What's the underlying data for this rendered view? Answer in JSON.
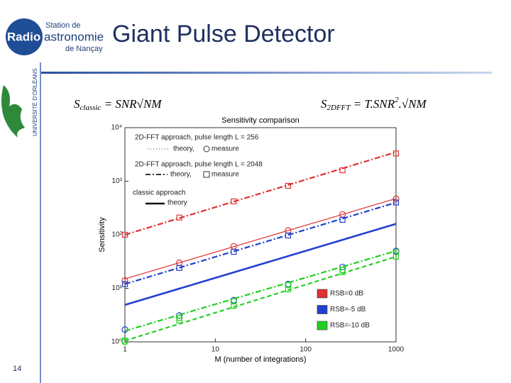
{
  "slide": {
    "logo": {
      "top": "Station de",
      "radio": "Radio",
      "astro": "astronomie",
      "bottom": "de Nançay"
    },
    "university": "UNIVERSITÉ D'ORLÉANS",
    "title": "Giant Pulse Detector",
    "page": "14",
    "formula1": {
      "lhs": "S",
      "sub": "classic",
      "rhs": " = SNR√NM"
    },
    "formula2": {
      "lhs": "S",
      "sub": "2DFFT",
      "rhs": " = T.SNR",
      "sup": "2",
      "tail": ".√NM"
    }
  },
  "chart_data": {
    "type": "line",
    "title": "Sensitivity comparison",
    "xlabel": "M (number of integrations)",
    "ylabel": "Sensitivity",
    "xscale": "log",
    "yscale": "log",
    "xlim": [
      1,
      1000
    ],
    "ylim": [
      1,
      10000
    ],
    "xticks": [
      1,
      10,
      100,
      1000
    ],
    "yticks": [
      {
        "value": 1,
        "label": "10⁰"
      },
      {
        "value": 10,
        "label": "10¹"
      },
      {
        "value": 100,
        "label": "10²"
      },
      {
        "value": 1000,
        "label": "10³"
      },
      {
        "value": 10000,
        "label": "10⁴"
      }
    ],
    "style_legend": [
      "2D-FFT approach, pulse length  L = 256",
      "theory,",
      "measure",
      "2D-FFT approach, pulse length L = 2048",
      "theory,",
      "measure",
      "classic approach",
      "theory"
    ],
    "legend": [
      {
        "name": "RSB=0 dB",
        "color": "#e03030"
      },
      {
        "name": "RSB=-5 dB",
        "color": "#2040d0"
      },
      {
        "name": "RSB=-10 dB",
        "color": "#20d020"
      }
    ],
    "series": [
      {
        "color": "#e03030",
        "dash": "solid",
        "linewidth": 1.2,
        "x": [
          1,
          1000
        ],
        "values": [
          15,
          475
        ]
      },
      {
        "color": "#e03030",
        "dash": "dashdot",
        "linewidth": 2.2,
        "x": [
          1,
          1000
        ],
        "values": [
          100,
          3500
        ]
      },
      {
        "color": "#e03030",
        "marker": "square",
        "x": [
          1,
          4,
          16,
          64,
          256,
          1000
        ],
        "values": [
          100,
          210,
          420,
          820,
          1600,
          3300
        ]
      },
      {
        "color": "#e03030",
        "marker": "circle",
        "x": [
          1,
          4,
          16,
          64,
          256,
          1000
        ],
        "values": [
          14,
          30,
          61,
          120,
          240,
          470
        ]
      },
      {
        "color": "#2040d0",
        "dash": "solid",
        "linewidth": 2.6,
        "x": [
          1,
          1000
        ],
        "values": [
          4.9,
          160
        ]
      },
      {
        "color": "#2040d0",
        "dash": "dashdot",
        "linewidth": 2.2,
        "x": [
          1,
          1000
        ],
        "values": [
          12,
          400
        ]
      },
      {
        "color": "#2040d0",
        "marker": "square",
        "x": [
          1,
          4,
          16,
          64,
          256,
          1000
        ],
        "values": [
          12,
          24,
          48,
          97,
          190,
          400
        ]
      },
      {
        "color": "#2040d0",
        "marker": "circle",
        "x": [
          1,
          4,
          16,
          64,
          256,
          1000
        ],
        "values": [
          1.7,
          3.1,
          6.0,
          12,
          25,
          50
        ]
      },
      {
        "color": "#20d020",
        "dash": "dashdot",
        "linewidth": 2.2,
        "x": [
          1,
          1000
        ],
        "values": [
          1.6,
          50
        ]
      },
      {
        "color": "#20d020",
        "dash": "dashed",
        "linewidth": 2.2,
        "x": [
          1,
          1000
        ],
        "values": [
          1.05,
          39
        ]
      },
      {
        "color": "#20d020",
        "marker": "square",
        "x": [
          1,
          4,
          16,
          64,
          256,
          1000
        ],
        "values": [
          1.06,
          2.5,
          4.7,
          9.6,
          20,
          39
        ]
      },
      {
        "color": "#20d020",
        "marker": "circle",
        "x": [
          1,
          4,
          16,
          64,
          256,
          1000
        ],
        "values": [
          1.0,
          2.8,
          5.7,
          11.5,
          22,
          48
        ]
      }
    ]
  }
}
